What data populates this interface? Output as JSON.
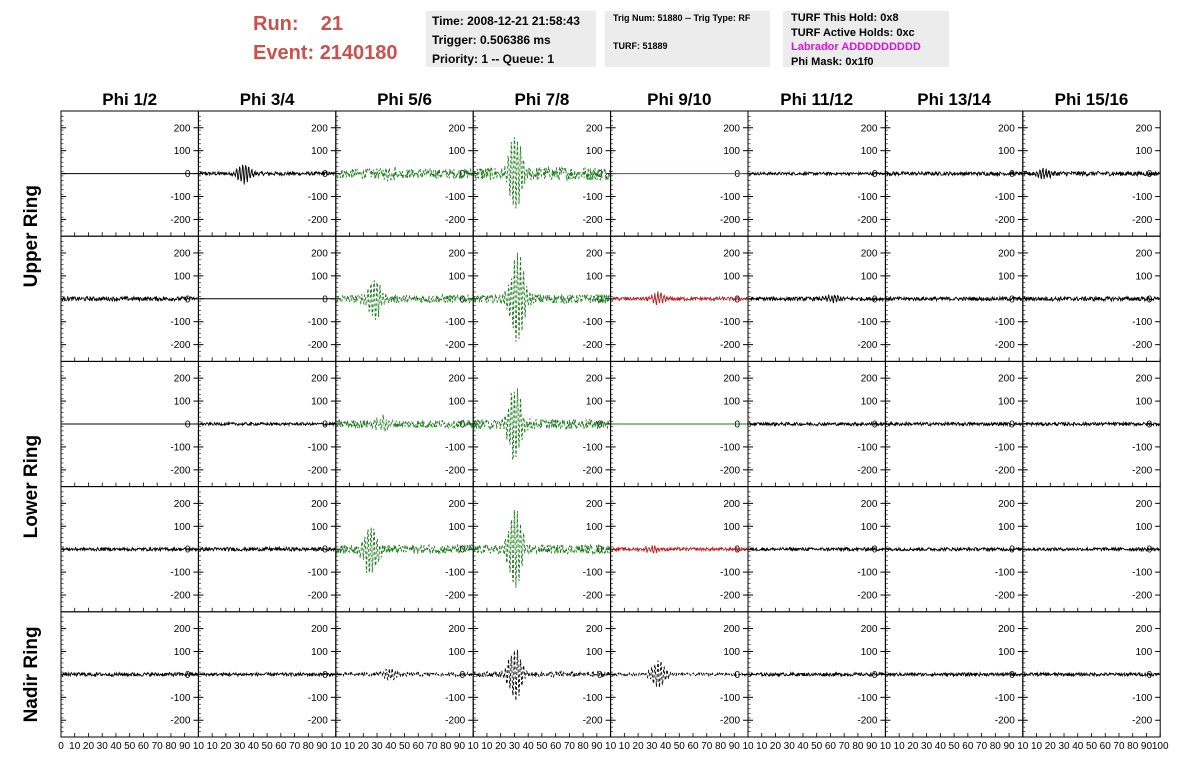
{
  "header": {
    "run_label": "Run:",
    "run_value": "21",
    "event_label": "Event:",
    "event_value": "2140180"
  },
  "info_time": {
    "time": "Time: 2008-12-21 21:58:43",
    "trigger": "Trigger: 0.506386 ms",
    "priority": "Priority: 1 -- Queue: 1"
  },
  "info_trig": {
    "trig": "Trig Num: 51880 -- Trig Type: RF",
    "turf": "TURF: 51889"
  },
  "info_turf": {
    "this_hold": "TURF This Hold: 0x8",
    "active_holds": "TURF Active Holds: 0xc",
    "labrador": "Labrador ADDDDDDDDD",
    "phi_mask": "Phi Mask: 0x1f0"
  },
  "colors": {
    "header_text": "#c8524e",
    "labrador": "#e010e0",
    "trace_black": "#000000",
    "trace_green": "#1a7a1a",
    "trace_red": "#b22222",
    "panel_bg": "#ececec"
  },
  "chart_data": {
    "type": "line",
    "column_titles": [
      "Phi 1/2",
      "Phi 3/4",
      "Phi 5/6",
      "Phi 7/8",
      "Phi 9/10",
      "Phi 11/12",
      "Phi 13/14",
      "Phi 15/16"
    ],
    "ring_titles": [
      "Upper Ring",
      "Lower Ring",
      "Nadir Ring"
    ],
    "ylim": [
      -260,
      260
    ],
    "xlim": [
      0,
      100
    ],
    "y_ticks": [
      -200,
      -100,
      0,
      100,
      200
    ],
    "y_tick_labels": [
      "-200",
      "-100",
      "0",
      "100",
      "200"
    ],
    "x_tick_labels": [
      "0",
      "10",
      "20",
      "30",
      "40",
      "50",
      "60",
      "70",
      "80",
      "90",
      "100"
    ],
    "x_tick_labels_panel": [
      "10",
      "20",
      "30",
      "40",
      "50",
      "60",
      "70",
      "80",
      "90",
      "10"
    ],
    "rows": [
      [
        {
          "style": "flat",
          "color": "black",
          "amp": 0,
          "peak_t": 50,
          "burst": 0
        },
        {
          "style": "solid",
          "color": "black",
          "amp": 8,
          "peak_t": 33,
          "burst": 40
        },
        {
          "style": "dashed",
          "color": "green",
          "amp": 22,
          "peak_t": 40,
          "burst": 18
        },
        {
          "style": "dashed",
          "color": "green",
          "amp": 30,
          "peak_t": 30,
          "burst": 150
        },
        {
          "style": "flat",
          "color": "green",
          "amp": 0,
          "peak_t": 50,
          "burst": 0
        },
        {
          "style": "solid",
          "color": "black",
          "amp": 6,
          "peak_t": 50,
          "burst": 0
        },
        {
          "style": "solid",
          "color": "black",
          "amp": 8,
          "peak_t": 50,
          "burst": 0
        },
        {
          "style": "solid",
          "color": "black",
          "amp": 10,
          "peak_t": 15,
          "burst": 18
        }
      ],
      [
        {
          "style": "solid",
          "color": "black",
          "amp": 9,
          "peak_t": 50,
          "burst": 0
        },
        {
          "style": "flat",
          "color": "black",
          "amp": 0,
          "peak_t": 50,
          "burst": 0
        },
        {
          "style": "dashed",
          "color": "green",
          "amp": 18,
          "peak_t": 28,
          "burst": 90
        },
        {
          "style": "dashed",
          "color": "green",
          "amp": 20,
          "peak_t": 32,
          "burst": 190
        },
        {
          "style": "solid",
          "color": "red",
          "amp": 8,
          "peak_t": 35,
          "burst": 25
        },
        {
          "style": "solid",
          "color": "black",
          "amp": 8,
          "peak_t": 62,
          "burst": 15
        },
        {
          "style": "solid",
          "color": "black",
          "amp": 8,
          "peak_t": 50,
          "burst": 0
        },
        {
          "style": "solid",
          "color": "black",
          "amp": 9,
          "peak_t": 50,
          "burst": 0
        }
      ],
      [
        {
          "style": "flat",
          "color": "black",
          "amp": 0,
          "peak_t": 50,
          "burst": 0
        },
        {
          "style": "solid",
          "color": "black",
          "amp": 6,
          "peak_t": 50,
          "burst": 0
        },
        {
          "style": "dashed",
          "color": "green",
          "amp": 18,
          "peak_t": 35,
          "burst": 35
        },
        {
          "style": "dashed",
          "color": "green",
          "amp": 22,
          "peak_t": 30,
          "burst": 160
        },
        {
          "style": "flat",
          "color": "green",
          "amp": 0,
          "peak_t": 50,
          "burst": 0
        },
        {
          "style": "solid",
          "color": "black",
          "amp": 7,
          "peak_t": 50,
          "burst": 0
        },
        {
          "style": "solid",
          "color": "black",
          "amp": 7,
          "peak_t": 50,
          "burst": 0
        },
        {
          "style": "solid",
          "color": "black",
          "amp": 7,
          "peak_t": 50,
          "burst": 0
        }
      ],
      [
        {
          "style": "solid",
          "color": "black",
          "amp": 7,
          "peak_t": 50,
          "burst": 0
        },
        {
          "style": "solid",
          "color": "black",
          "amp": 8,
          "peak_t": 50,
          "burst": 0
        },
        {
          "style": "dashed",
          "color": "green",
          "amp": 20,
          "peak_t": 25,
          "burst": 110
        },
        {
          "style": "dashed",
          "color": "green",
          "amp": 20,
          "peak_t": 30,
          "burst": 170
        },
        {
          "style": "solid",
          "color": "red",
          "amp": 7,
          "peak_t": 30,
          "burst": 15
        },
        {
          "style": "solid",
          "color": "black",
          "amp": 7,
          "peak_t": 50,
          "burst": 0
        },
        {
          "style": "solid",
          "color": "black",
          "amp": 7,
          "peak_t": 50,
          "burst": 0
        },
        {
          "style": "solid",
          "color": "black",
          "amp": 7,
          "peak_t": 50,
          "burst": 0
        }
      ],
      [
        {
          "style": "solid",
          "color": "black",
          "amp": 8,
          "peak_t": 50,
          "burst": 0
        },
        {
          "style": "solid",
          "color": "black",
          "amp": 7,
          "peak_t": 50,
          "burst": 0
        },
        {
          "style": "dashed",
          "color": "black",
          "amp": 8,
          "peak_t": 40,
          "burst": 25
        },
        {
          "style": "dashed",
          "color": "black",
          "amp": 12,
          "peak_t": 30,
          "burst": 110
        },
        {
          "style": "dashed",
          "color": "black",
          "amp": 6,
          "peak_t": 35,
          "burst": 60
        },
        {
          "style": "solid",
          "color": "black",
          "amp": 7,
          "peak_t": 50,
          "burst": 0
        },
        {
          "style": "solid",
          "color": "black",
          "amp": 7,
          "peak_t": 50,
          "burst": 0
        },
        {
          "style": "solid",
          "color": "black",
          "amp": 7,
          "peak_t": 50,
          "burst": 0
        }
      ]
    ]
  }
}
